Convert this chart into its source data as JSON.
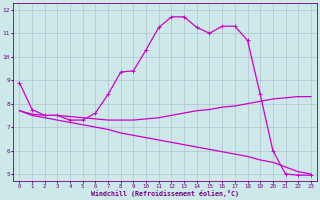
{
  "xlabel": "Windchill (Refroidissement éolien,°C)",
  "bg_color": "#cce8e8",
  "line_color": "#cc00cc",
  "grid_color": "#aabbcc",
  "axis_color": "#770088",
  "xlim_min": -0.5,
  "xlim_max": 23.5,
  "ylim_min": 4.7,
  "ylim_max": 12.3,
  "yticks": [
    5,
    6,
    7,
    8,
    9,
    10,
    11,
    12
  ],
  "xticks": [
    0,
    1,
    2,
    3,
    4,
    5,
    6,
    7,
    8,
    9,
    10,
    11,
    12,
    13,
    14,
    15,
    16,
    17,
    18,
    19,
    20,
    21,
    22,
    23
  ],
  "line1_x": [
    0,
    1,
    2,
    3,
    4,
    5,
    6,
    7,
    8,
    9,
    10,
    11,
    12,
    13,
    14,
    15,
    16,
    17,
    18,
    19,
    20,
    21,
    22,
    23
  ],
  "line1_y": [
    8.9,
    7.75,
    7.5,
    7.5,
    7.3,
    7.3,
    7.6,
    8.4,
    9.35,
    9.4,
    10.3,
    11.25,
    11.7,
    11.7,
    11.25,
    11.0,
    11.3,
    11.3,
    10.7,
    8.4,
    6.0,
    5.0,
    4.95,
    4.95
  ],
  "line2_x": [
    0,
    1,
    2,
    3,
    4,
    5,
    6,
    7,
    8,
    9,
    10,
    11,
    12,
    13,
    14,
    15,
    16,
    17,
    18,
    19,
    20,
    21,
    22,
    23
  ],
  "line2_y": [
    7.7,
    7.55,
    7.5,
    7.5,
    7.45,
    7.4,
    7.35,
    7.3,
    7.3,
    7.3,
    7.35,
    7.4,
    7.5,
    7.6,
    7.7,
    7.75,
    7.85,
    7.9,
    8.0,
    8.1,
    8.2,
    8.25,
    8.3,
    8.3
  ],
  "line3_x": [
    0,
    1,
    2,
    3,
    4,
    5,
    6,
    7,
    8,
    9,
    10,
    11,
    12,
    13,
    14,
    15,
    16,
    17,
    18,
    19,
    20,
    21,
    22,
    23
  ],
  "line3_y": [
    7.7,
    7.5,
    7.4,
    7.3,
    7.2,
    7.1,
    7.0,
    6.9,
    6.75,
    6.65,
    6.55,
    6.45,
    6.35,
    6.25,
    6.15,
    6.05,
    5.95,
    5.85,
    5.75,
    5.6,
    5.5,
    5.3,
    5.1,
    5.0
  ]
}
